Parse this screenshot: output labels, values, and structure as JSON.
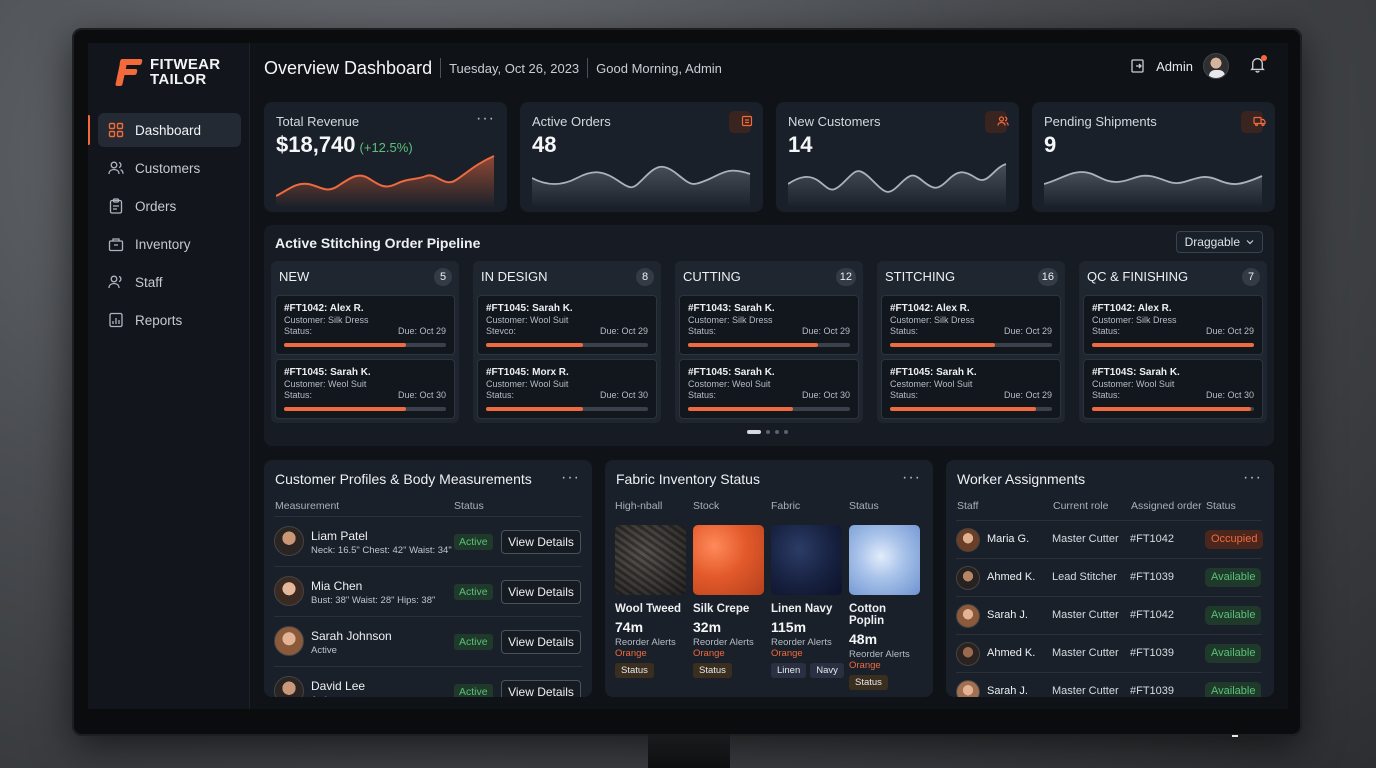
{
  "brand": {
    "line1": "FITWEAR",
    "line2": "TAILOR",
    "accent": "#f26a3a"
  },
  "sidebar": {
    "items": [
      {
        "label": "Dashboard",
        "icon": "grid-icon",
        "active": true
      },
      {
        "label": "Customers",
        "icon": "users-icon"
      },
      {
        "label": "Orders",
        "icon": "clipboard-icon"
      },
      {
        "label": "Inventory",
        "icon": "box-icon"
      },
      {
        "label": "Staff",
        "icon": "staff-icon"
      },
      {
        "label": "Reports",
        "icon": "report-icon"
      }
    ]
  },
  "header": {
    "title": "Overview Dashboard",
    "date": "Tuesday, Oct 26, 2023",
    "greeting": "Good Morning, Admin",
    "user": "Admin"
  },
  "kpis": [
    {
      "label": "Total Revenue",
      "value": "$18,740",
      "change": "(+12.5%)",
      "menu": "···"
    },
    {
      "label": "Active Orders",
      "value": "48",
      "icon": "orders-icon"
    },
    {
      "label": "New Customers",
      "value": "14",
      "icon": "customer-icon"
    },
    {
      "label": "Pending Shipments",
      "value": "9",
      "icon": "truck-icon"
    }
  ],
  "pipeline": {
    "title": "Active Stitching Order Pipeline",
    "dropdown": "Draggable",
    "columns": [
      {
        "name": "NEW",
        "count": "5",
        "cards": [
          {
            "id": "#FT1042: Alex R.",
            "customer": "Customer: Silk Dress",
            "status": "Status:",
            "due": "Due: Oct 29",
            "progress": 0.75
          },
          {
            "id": "#FT1045: Sarah K.",
            "customer": "Customer: Weol Suit",
            "status": "Status:",
            "due": "Due: Oct 30",
            "progress": 0.75
          }
        ]
      },
      {
        "name": "IN DESIGN",
        "count": "8",
        "cards": [
          {
            "id": "#FT1045: Sarah K.",
            "customer": "Customer: Wool Suit",
            "status": "Stevco:",
            "due": "Due: Oct 29",
            "progress": 0.6
          },
          {
            "id": "#FT1045: Morx R.",
            "customer": "Customer: Wool Suit",
            "status": "Status:",
            "due": "Due: Oct 30",
            "progress": 0.6
          }
        ]
      },
      {
        "name": "CUTTING",
        "count": "12",
        "cards": [
          {
            "id": "#FT1043: Sarah K.",
            "customer": "Customer: Silk Dress",
            "status": "Status:",
            "due": "Due: Oct 29",
            "progress": 0.8
          },
          {
            "id": "#FT1045: Sarah K.",
            "customer": "Costomer: Weol Suit",
            "status": "Status:",
            "due": "Due: Oct 30",
            "progress": 0.65
          }
        ]
      },
      {
        "name": "STITCHING",
        "count": "16",
        "cards": [
          {
            "id": "#FT1042: Alex R.",
            "customer": "Customer: Silk Dress",
            "status": "Status:",
            "due": "Due: Oct 29",
            "progress": 0.65
          },
          {
            "id": "#FT1045: Sarah K.",
            "customer": "Cestomer: Wool Suit",
            "status": "Status:",
            "due": "Due: Oct 29",
            "progress": 0.9
          }
        ]
      },
      {
        "name": "QC & FINISHING",
        "count": "7",
        "cards": [
          {
            "id": "#FT1042: Alex R.",
            "customer": "Customer: Silk Dress",
            "status": "Status:",
            "due": "Due: Oct 29",
            "progress": 1.0
          },
          {
            "id": "#FT104S: Sarah K.",
            "customer": "Customer: Wool Suit",
            "status": "Status:",
            "due": "Due: Oct 30",
            "progress": 0.98
          }
        ]
      }
    ]
  },
  "profiles": {
    "title": "Customer Profiles & Body Measurements",
    "headers": {
      "measurement": "Measurement",
      "status": "Status"
    },
    "rows": [
      {
        "name": "Liam Patel",
        "meas": "Neck: 16.5\"  Chest: 42\"  Waist: 34\"",
        "status": "Active",
        "button": "View Details"
      },
      {
        "name": "Mia Chen",
        "meas": "Bust: 38\"  Waist: 28\"  Hips: 38\"",
        "status": "Active",
        "button": "View Details"
      },
      {
        "name": "Sarah Johnson",
        "meas": "Active",
        "status": "Active",
        "button": "View Details"
      },
      {
        "name": "David Lee",
        "meas": "Active",
        "status": "Active",
        "button": "View Details"
      }
    ]
  },
  "fabrics": {
    "title": "Fabric Inventory Status",
    "headers": [
      "High-nball",
      "Stock",
      "Fabric",
      "Status"
    ],
    "items": [
      {
        "name": "Wool Tweed",
        "qty": "74m",
        "reorder": "Reorder Alerts",
        "level": "Orange",
        "tags": [
          "Status"
        ]
      },
      {
        "name": "Silk Crepe",
        "qty": "32m",
        "reorder": "Reorder Alerts",
        "level": "Orange",
        "tags": [
          "Status"
        ]
      },
      {
        "name": "Linen Navy",
        "qty": "115m",
        "reorder": "Reorder Alerts",
        "level": "Orange",
        "tags": [
          "Linen",
          "Navy"
        ]
      },
      {
        "name": "Cotton Poplin",
        "qty": "48m",
        "reorder": "Reorder Alerts",
        "level": "Orange",
        "tags": [
          "Status"
        ]
      }
    ]
  },
  "workers": {
    "title": "Worker Assignments",
    "headers": [
      "Staff",
      "Current role",
      "Assigned order",
      "Status"
    ],
    "rows": [
      {
        "name": "Maria G.",
        "role": "Master Cutter",
        "order": "#FT1042",
        "status": "Occupied"
      },
      {
        "name": "Ahmed K.",
        "role": "Lead Stitcher",
        "order": "#FT1039",
        "status": "Available"
      },
      {
        "name": "Sarah J.",
        "role": "Master Cutter",
        "order": "#FT1042",
        "status": "Available"
      },
      {
        "name": "Ahmed K.",
        "role": "Master Cutter",
        "order": "#FT1039",
        "status": "Available"
      },
      {
        "name": "Sarah J.",
        "role": "Master Cutter",
        "order": "#FT1039",
        "status": "Available"
      }
    ]
  }
}
